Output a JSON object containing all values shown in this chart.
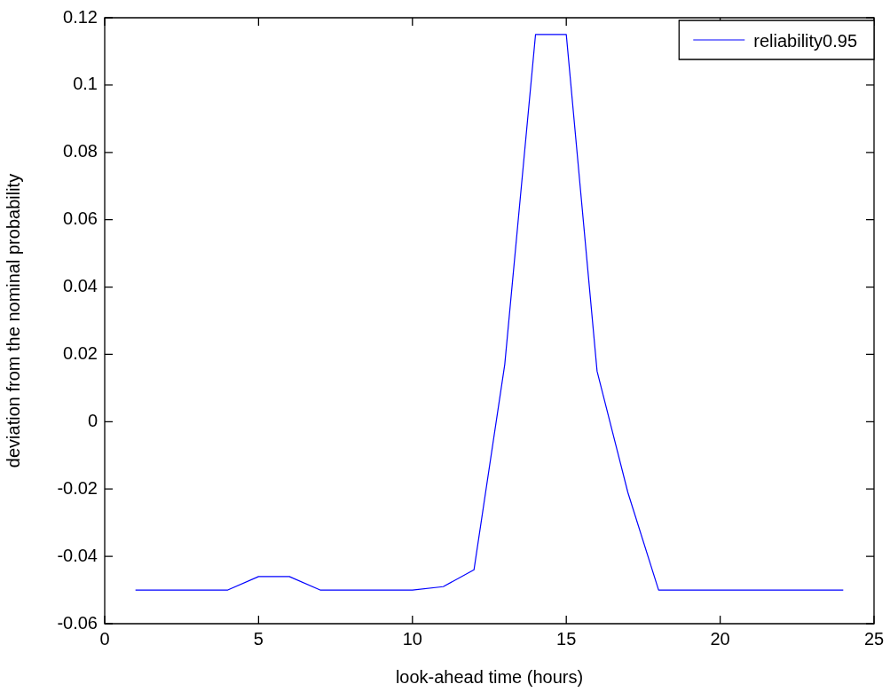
{
  "chart_data": {
    "type": "line",
    "xlabel": "look-ahead time (hours)",
    "ylabel": "deviation from the nominal probability",
    "x": [
      1,
      2,
      3,
      4,
      5,
      6,
      7,
      8,
      9,
      10,
      11,
      12,
      13,
      14,
      15,
      16,
      17,
      18,
      19,
      20,
      21,
      22,
      23,
      24
    ],
    "series": [
      {
        "name": "reliability0.95",
        "color": "#0000ff",
        "values": [
          -0.05,
          -0.05,
          -0.05,
          -0.05,
          -0.046,
          -0.046,
          -0.05,
          -0.05,
          -0.05,
          -0.05,
          -0.049,
          -0.044,
          0.017,
          0.115,
          0.115,
          0.015,
          -0.021,
          -0.05,
          -0.05,
          -0.05,
          -0.05,
          -0.05,
          -0.05,
          -0.05
        ]
      }
    ],
    "xlim": [
      0,
      25
    ],
    "xticks": [
      0,
      5,
      10,
      15,
      20,
      25
    ],
    "ylim": [
      -0.06,
      0.12
    ],
    "yticks": [
      -0.06,
      -0.04,
      -0.02,
      0,
      0.02,
      0.04,
      0.06,
      0.08,
      0.1,
      0.12
    ],
    "grid": false,
    "legend": "top right",
    "marker": "none",
    "line_style": "solid"
  }
}
